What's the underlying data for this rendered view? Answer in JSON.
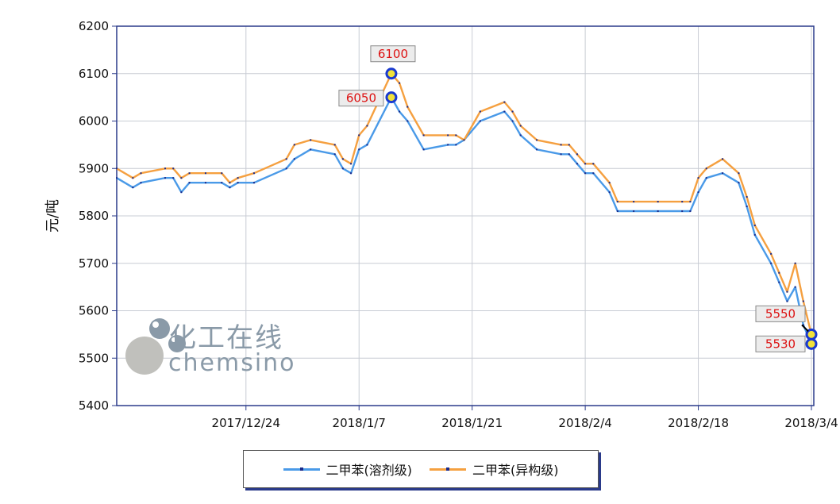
{
  "chart_data": {
    "type": "line",
    "ylabel": "元/吨",
    "xlabel": "",
    "title": "",
    "ylim": [
      5400,
      6200
    ],
    "yticks": [
      5400,
      5500,
      5600,
      5700,
      5800,
      5900,
      6000,
      6100,
      6200
    ],
    "xtick_labels": [
      "2017/12/24",
      "2018/1/7",
      "2018/1/21",
      "2018/2/4",
      "2018/2/18",
      "2018/3/4"
    ],
    "xtick_day_index": [
      16,
      30,
      44,
      58,
      72,
      86
    ],
    "x_start": "2017/12/8",
    "x_end": "2018/3/9",
    "grid": true,
    "legend_position": "bottom",
    "series": [
      {
        "name": "二甲苯(溶剂级)",
        "color": "#4a9ae8",
        "points": [
          [
            0,
            5880
          ],
          [
            2,
            5860
          ],
          [
            3,
            5870
          ],
          [
            6,
            5880
          ],
          [
            7,
            5880
          ],
          [
            8,
            5850
          ],
          [
            9,
            5870
          ],
          [
            11,
            5870
          ],
          [
            13,
            5870
          ],
          [
            14,
            5860
          ],
          [
            15,
            5870
          ],
          [
            17,
            5870
          ],
          [
            21,
            5900
          ],
          [
            22,
            5920
          ],
          [
            24,
            5940
          ],
          [
            27,
            5930
          ],
          [
            28,
            5900
          ],
          [
            29,
            5890
          ],
          [
            30,
            5940
          ],
          [
            31,
            5950
          ],
          [
            34,
            6050
          ],
          [
            35,
            6020
          ],
          [
            36,
            6000
          ],
          [
            38,
            5940
          ],
          [
            41,
            5950
          ],
          [
            42,
            5950
          ],
          [
            43,
            5960
          ],
          [
            45,
            6000
          ],
          [
            48,
            6020
          ],
          [
            49,
            6000
          ],
          [
            50,
            5970
          ],
          [
            52,
            5940
          ],
          [
            55,
            5930
          ],
          [
            56,
            5930
          ],
          [
            57,
            5910
          ],
          [
            58,
            5890
          ],
          [
            59,
            5890
          ],
          [
            61,
            5850
          ],
          [
            62,
            5810
          ],
          [
            64,
            5810
          ],
          [
            67,
            5810
          ],
          [
            70,
            5810
          ],
          [
            71,
            5810
          ],
          [
            72,
            5850
          ],
          [
            73,
            5880
          ],
          [
            75,
            5890
          ],
          [
            77,
            5870
          ],
          [
            78,
            5820
          ],
          [
            79,
            5760
          ],
          [
            81,
            5700
          ],
          [
            82,
            5660
          ],
          [
            83,
            5620
          ],
          [
            84,
            5650
          ],
          [
            85,
            5570
          ],
          [
            86,
            5530
          ]
        ]
      },
      {
        "name": "二甲苯(异构级)",
        "color": "#f5a040",
        "points": [
          [
            0,
            5900
          ],
          [
            2,
            5880
          ],
          [
            3,
            5890
          ],
          [
            6,
            5900
          ],
          [
            7,
            5900
          ],
          [
            8,
            5880
          ],
          [
            9,
            5890
          ],
          [
            11,
            5890
          ],
          [
            13,
            5890
          ],
          [
            14,
            5870
          ],
          [
            15,
            5880
          ],
          [
            17,
            5890
          ],
          [
            21,
            5920
          ],
          [
            22,
            5950
          ],
          [
            24,
            5960
          ],
          [
            27,
            5950
          ],
          [
            28,
            5920
          ],
          [
            29,
            5910
          ],
          [
            30,
            5970
          ],
          [
            31,
            5990
          ],
          [
            34,
            6100
          ],
          [
            35,
            6080
          ],
          [
            36,
            6030
          ],
          [
            38,
            5970
          ],
          [
            41,
            5970
          ],
          [
            42,
            5970
          ],
          [
            43,
            5960
          ],
          [
            45,
            6020
          ],
          [
            48,
            6040
          ],
          [
            49,
            6020
          ],
          [
            50,
            5990
          ],
          [
            52,
            5960
          ],
          [
            55,
            5950
          ],
          [
            56,
            5950
          ],
          [
            57,
            5930
          ],
          [
            58,
            5910
          ],
          [
            59,
            5910
          ],
          [
            61,
            5870
          ],
          [
            62,
            5830
          ],
          [
            64,
            5830
          ],
          [
            67,
            5830
          ],
          [
            70,
            5830
          ],
          [
            71,
            5830
          ],
          [
            72,
            5880
          ],
          [
            73,
            5900
          ],
          [
            75,
            5920
          ],
          [
            77,
            5890
          ],
          [
            78,
            5840
          ],
          [
            79,
            5780
          ],
          [
            81,
            5720
          ],
          [
            82,
            5680
          ],
          [
            83,
            5640
          ],
          [
            84,
            5700
          ],
          [
            85,
            5620
          ],
          [
            86,
            5550
          ]
        ]
      }
    ],
    "annotations": [
      {
        "label": "6100",
        "x": 34,
        "y": 6100
      },
      {
        "label": "6050",
        "x": 34,
        "y": 6050
      },
      {
        "label": "5550",
        "x": 86,
        "y": 5550
      },
      {
        "label": "5530",
        "x": 86,
        "y": 5530
      }
    ]
  },
  "legend": [
    {
      "label": "二甲苯(溶剂级)",
      "color": "#4a9ae8"
    },
    {
      "label": "二甲苯(异构级)",
      "color": "#f5a040"
    }
  ],
  "watermark": {
    "cn": "化工在线",
    "en": "chemsino"
  }
}
